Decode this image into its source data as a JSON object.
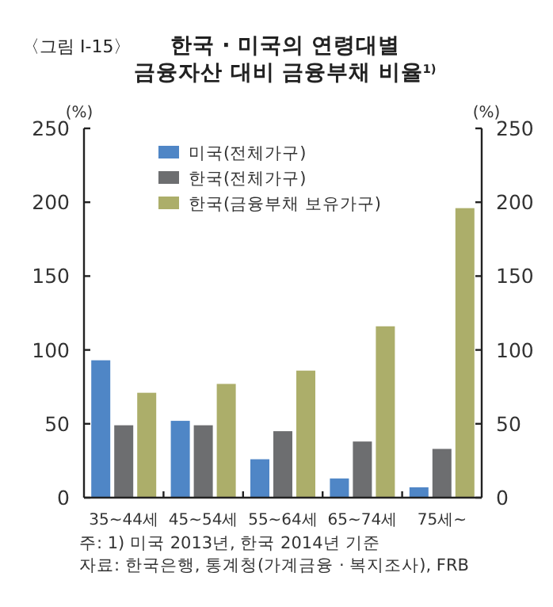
{
  "chart_data": {
    "type": "bar",
    "title": "한국 · 미국의 연령대별\n금융자산 대비 금융부채 비율$^{1)}$",
    "categories": [
      "35~44세",
      "45~54세",
      "55~64세",
      "65~74세",
      "75세~"
    ],
    "series": [
      {
        "name": "미국(전체가구)",
        "color": "#4f86c6",
        "values": [
          93,
          52,
          26,
          13,
          7
        ]
      },
      {
        "name": "한국(전체가구)",
        "color": "#6d6e70",
        "values": [
          49,
          49,
          45,
          38,
          33
        ]
      },
      {
        "name": "한국(금융부채 보유가구)",
        "color": "#acae6a",
        "values": [
          71,
          77,
          86,
          116,
          196
        ]
      }
    ],
    "ylabel": "(%)",
    "y2label": "(%)",
    "ylim": [
      0,
      250
    ],
    "yticks": [
      0,
      50,
      100,
      150,
      200,
      250
    ],
    "y2lim": [
      0,
      250
    ],
    "y2ticks": [
      0,
      50,
      100,
      150,
      200,
      250
    ],
    "legend": "top left",
    "grid": false,
    "annotations": [
      "〈그림 Ⅰ-15〉",
      "주: 1) 미국 2013년, 한국 2014년 기준",
      "자료: 한국은행, 통계청(가계금융 · 복지조사), FRB"
    ]
  }
}
